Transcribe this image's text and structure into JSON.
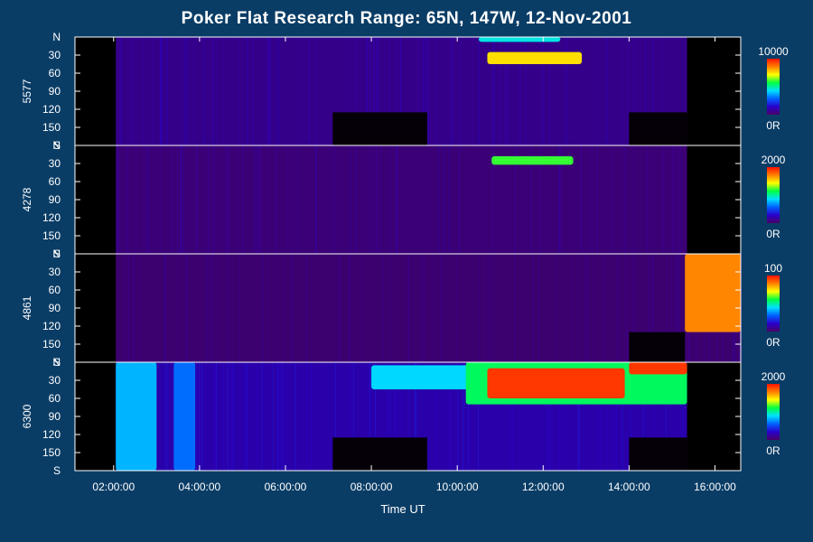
{
  "colors": {
    "page_background": "#0a3d66",
    "plot_background": "#000000",
    "axis": "#ffffff",
    "colormap": [
      "#4a0066",
      "#2a00cc",
      "#0060ff",
      "#00e0ff",
      "#00ff40",
      "#ffff00",
      "#ff8000",
      "#ff1000"
    ]
  },
  "chart_data": {
    "type": "heatmap",
    "title": "Poker Flat Research Range: 65N, 147W, 12-Nov-2001",
    "xlabel": "Time UT",
    "x_ticks": [
      "02:00:00",
      "04:00:00",
      "06:00:00",
      "08:00:00",
      "10:00:00",
      "12:00:00",
      "14:00:00",
      "16:00:00"
    ],
    "x_tick_hours": [
      2,
      4,
      6,
      8,
      10,
      12,
      14,
      16
    ],
    "xlim_hours": [
      1.1,
      16.6
    ],
    "y_ticks": [
      "N",
      "30",
      "60",
      "90",
      "120",
      "150",
      "S"
    ],
    "y_tick_values": [
      0,
      30,
      60,
      90,
      120,
      150,
      180
    ],
    "ylim": [
      0,
      180
    ],
    "colorbar_min_label": "0R",
    "panels": [
      {
        "name": "5577",
        "colorbar_max": 10000,
        "data_hours": [
          2.05,
          15.35
        ],
        "base_level": 0.07,
        "features": [
          {
            "hours": [
              10.7,
              12.9
            ],
            "angle": [
              25,
              45
            ],
            "level": 0.75
          },
          {
            "hours": [
              10.5,
              12.4
            ],
            "angle": [
              0,
              8
            ],
            "level": 0.45
          }
        ],
        "dark_blocks": [
          {
            "hours": [
              7.1,
              9.3
            ],
            "angle": [
              125,
              180
            ]
          },
          {
            "hours": [
              14.0,
              15.35
            ],
            "angle": [
              125,
              180
            ]
          }
        ]
      },
      {
        "name": "4278",
        "colorbar_max": 2000,
        "data_hours": [
          2.05,
          15.35
        ],
        "base_level": 0.04,
        "features": [
          {
            "hours": [
              10.8,
              12.7
            ],
            "angle": [
              18,
              32
            ],
            "level": 0.6
          }
        ],
        "dark_blocks": []
      },
      {
        "name": "4861",
        "colorbar_max": 100,
        "data_hours": [
          2.05,
          16.6
        ],
        "base_level": 0.03,
        "features": [
          {
            "hours": [
              15.3,
              16.6
            ],
            "angle": [
              0,
              130
            ],
            "level": 0.85
          }
        ],
        "dark_blocks": [
          {
            "hours": [
              14.0,
              15.3
            ],
            "angle": [
              130,
              180
            ]
          }
        ]
      },
      {
        "name": "6300",
        "colorbar_max": 2000,
        "data_hours": [
          2.05,
          15.35
        ],
        "base_level": 0.12,
        "features": [
          {
            "hours": [
              2.05,
              3.0
            ],
            "angle": [
              0,
              180
            ],
            "level": 0.38
          },
          {
            "hours": [
              3.4,
              3.9
            ],
            "angle": [
              0,
              180
            ],
            "level": 0.3
          },
          {
            "hours": [
              8.0,
              10.6
            ],
            "angle": [
              5,
              45
            ],
            "level": 0.42
          },
          {
            "hours": [
              10.2,
              15.35
            ],
            "angle": [
              0,
              70
            ],
            "level": 0.55
          },
          {
            "hours": [
              10.7,
              13.9
            ],
            "angle": [
              10,
              60
            ],
            "level": 0.95
          },
          {
            "hours": [
              14.0,
              15.35
            ],
            "angle": [
              0,
              20
            ],
            "level": 0.95
          }
        ],
        "dark_blocks": [
          {
            "hours": [
              7.1,
              9.3
            ],
            "angle": [
              125,
              180
            ]
          },
          {
            "hours": [
              14.0,
              15.35
            ],
            "angle": [
              125,
              180
            ]
          }
        ]
      }
    ]
  }
}
